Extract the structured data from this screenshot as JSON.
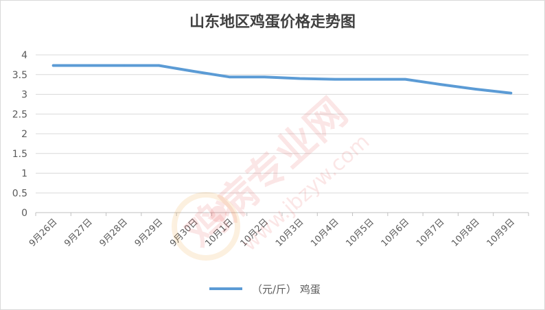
{
  "chart_data": {
    "type": "line",
    "title": "山东地区鸡蛋价格走势图",
    "categories": [
      "9月26日",
      "9月27日",
      "9月28日",
      "9月29日",
      "9月30日",
      "10月1日",
      "10月2日",
      "10月3日",
      "10月4日",
      "10月5日",
      "10月6日",
      "10月7日",
      "10月8日",
      "10月9日"
    ],
    "series": [
      {
        "name": "（元/斤） 鸡蛋",
        "color": "#5b9bd5",
        "values": [
          3.73,
          3.73,
          3.73,
          3.73,
          3.58,
          3.44,
          3.44,
          3.4,
          3.38,
          3.38,
          3.38,
          3.25,
          3.13,
          3.03
        ]
      }
    ],
    "yticks": [
      "0",
      "0.5",
      "1",
      "1.5",
      "2",
      "2.5",
      "3",
      "3.5",
      "4"
    ],
    "ylim": [
      0,
      4
    ],
    "grid": true,
    "legend_position": "bottom"
  },
  "watermark": {
    "text_cn": "鸡病专业网",
    "text_url": "www.jbzyw.com",
    "color": "#e84a4a"
  }
}
